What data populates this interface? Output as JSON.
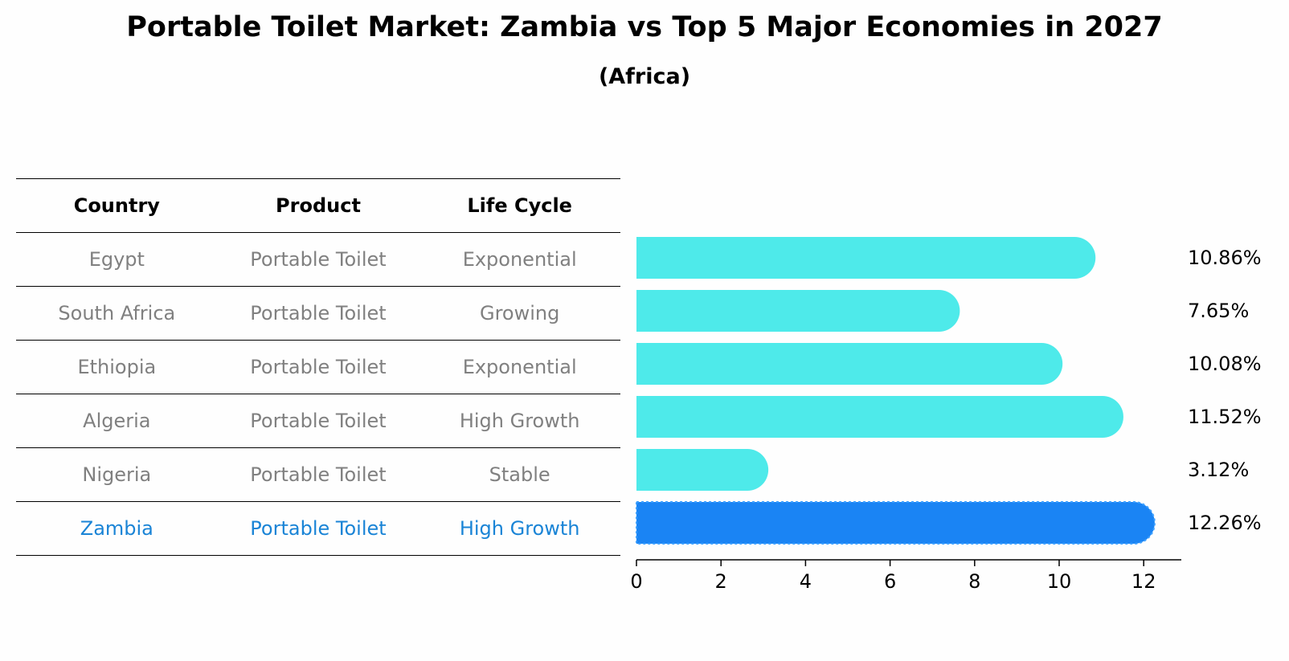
{
  "chart_data": {
    "type": "bar",
    "orientation": "horizontal",
    "title": "Portable Toilet Market: Zambia vs Top 5 Major Economies in 2027",
    "subtitle": "(Africa)",
    "categories": [
      "Egypt",
      "South Africa",
      "Ethiopia",
      "Algeria",
      "Nigeria",
      "Zambia"
    ],
    "values": [
      10.86,
      7.65,
      10.08,
      11.52,
      3.12,
      12.26
    ],
    "value_labels": [
      "10.86%",
      "7.65%",
      "10.08%",
      "11.52%",
      "3.12%",
      "12.26%"
    ],
    "highlight": "Zambia",
    "xlim": [
      0,
      12.9
    ],
    "xticks": [
      "0",
      "2",
      "4",
      "6",
      "8",
      "10",
      "12"
    ],
    "xlabel": "",
    "ylabel": "",
    "colors": {
      "bar": "#4eeaea",
      "highlight": "#1a84f4",
      "highlight_text": "#1a84d6"
    }
  },
  "table": {
    "headers": [
      "Country",
      "Product",
      "Life Cycle"
    ],
    "rows": [
      [
        "Egypt",
        "Portable Toilet",
        "Exponential"
      ],
      [
        "South Africa",
        "Portable Toilet",
        "Growing"
      ],
      [
        "Ethiopia",
        "Portable Toilet",
        "Exponential"
      ],
      [
        "Algeria",
        "Portable Toilet",
        "High Growth"
      ],
      [
        "Nigeria",
        "Portable Toilet",
        "Stable"
      ],
      [
        "Zambia",
        "Portable Toilet",
        "High Growth"
      ]
    ]
  }
}
